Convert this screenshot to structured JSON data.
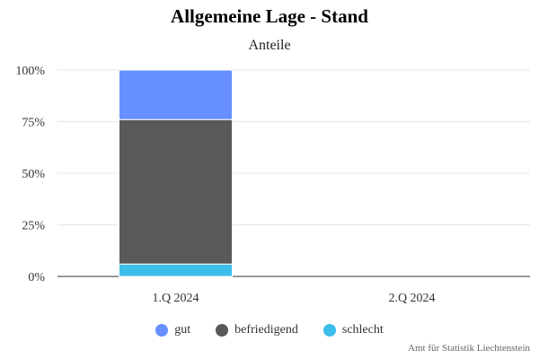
{
  "chart_data": {
    "type": "bar",
    "stacked": true,
    "title": "Allgemeine Lage - Stand",
    "subtitle": "Anteile",
    "categories": [
      "1.Q 2024",
      "2.Q 2024"
    ],
    "y_ticks": [
      "0%",
      "25%",
      "50%",
      "75%",
      "100%"
    ],
    "ylim": [
      0,
      100
    ],
    "grid": true,
    "legend_position": "bottom",
    "series": [
      {
        "name": "gut",
        "color": "#6690ff",
        "values": [
          24,
          null
        ]
      },
      {
        "name": "befriedigend",
        "color": "#595959",
        "values": [
          70,
          null
        ]
      },
      {
        "name": "schlecht",
        "color": "#3dbdea",
        "values": [
          6,
          null
        ]
      }
    ],
    "credits": "Amt für Statistik Liechtenstein"
  }
}
